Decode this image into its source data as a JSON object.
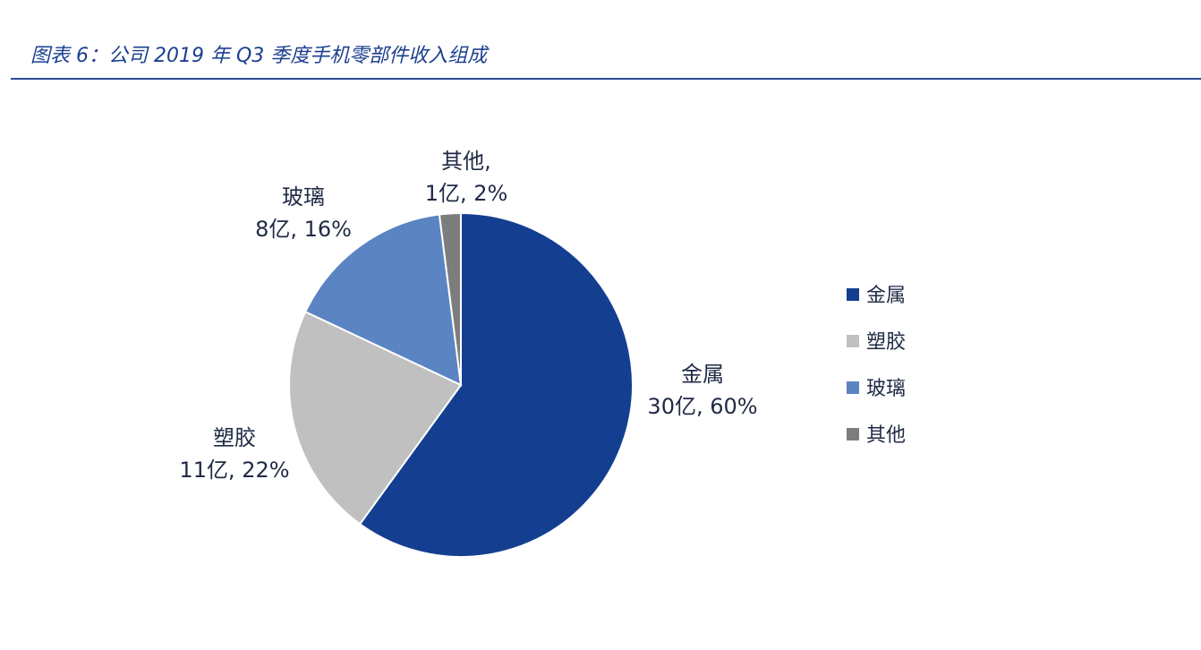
{
  "figure": {
    "title": "图表 6：公司 2019 年 Q3 季度手机零部件收入组成"
  },
  "chart_data": {
    "type": "pie",
    "title": "",
    "legend_position": "right",
    "slices": [
      {
        "name": "金属",
        "value": 30,
        "value_label": "30亿, 60%",
        "percent": 60,
        "color": "#143f91"
      },
      {
        "name": "塑胶",
        "value": 11,
        "value_label": "11亿, 22%",
        "percent": 22,
        "color": "#c0c0c0"
      },
      {
        "name": "玻璃",
        "value": 8,
        "value_label": "8亿, 16%",
        "percent": 16,
        "color": "#5b84c2"
      },
      {
        "name": "其他",
        "value": 1,
        "value_label": "1亿, 2%",
        "percent": 2,
        "color": "#7d7d7d"
      }
    ],
    "legend": [
      "金属",
      "塑胶",
      "玻璃",
      "其他"
    ],
    "slice_label_suffix": {
      "其他": ","
    }
  }
}
